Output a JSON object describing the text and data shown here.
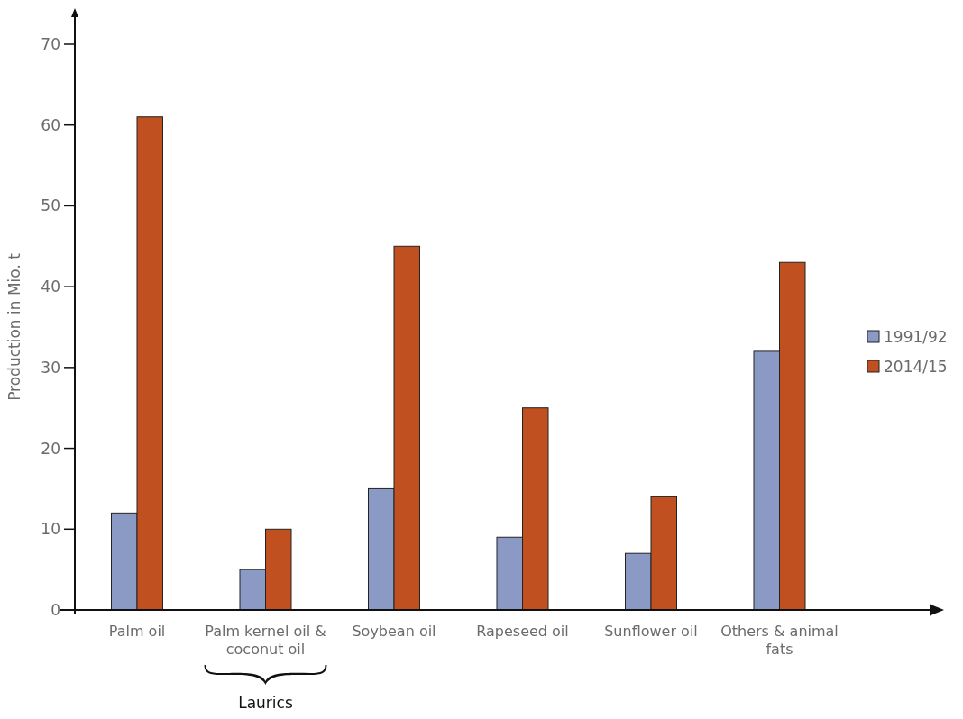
{
  "chart_data": {
    "type": "bar",
    "ylabel": "Production in Mio. t",
    "categories": [
      "Palm oil",
      "Palm kernel oil & coconut oil",
      "Soybean oil",
      "Rapeseed oil",
      "Sunflower oil",
      "Others & animal fats"
    ],
    "series": [
      {
        "name": "1991/92",
        "color": "#8a9ac4",
        "values": [
          12,
          5,
          15,
          9,
          7,
          32
        ]
      },
      {
        "name": "2014/15",
        "color": "#c0501f",
        "values": [
          61,
          10,
          45,
          25,
          14,
          43
        ]
      }
    ],
    "ylim": [
      0,
      70
    ],
    "yticks": [
      0,
      10,
      20,
      30,
      40,
      50,
      60,
      70
    ],
    "grid": false,
    "legend": "right",
    "annotations": [
      "Laurics"
    ]
  }
}
